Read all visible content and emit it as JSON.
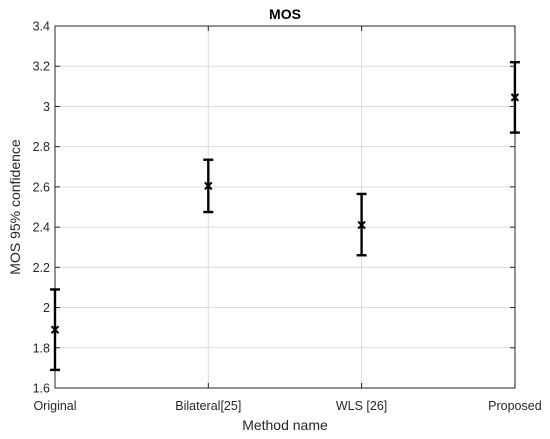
{
  "chart_data": {
    "type": "errorbar",
    "title": "MOS",
    "xlabel": "Method name",
    "ylabel": "MOS 95% confidence",
    "categories": [
      "Original",
      "Bilateral[25]",
      "WLS [26]",
      "Proposed"
    ],
    "series": [
      {
        "mean": [
          1.89,
          2.605,
          2.41,
          3.045
        ],
        "lower": [
          1.69,
          2.475,
          2.26,
          2.87
        ],
        "upper": [
          2.09,
          2.735,
          2.565,
          3.22
        ]
      }
    ],
    "ylim": [
      1.6,
      3.4
    ],
    "yticks": [
      1.6,
      1.8,
      2,
      2.2,
      2.4,
      2.6,
      2.8,
      3,
      3.2,
      3.4
    ],
    "ytick_labels": [
      "1.6",
      "1.8",
      "2",
      "2.2",
      "2.4",
      "2.6",
      "2.8",
      "3",
      "3.2",
      "3.4"
    ],
    "grid": true,
    "legend": false
  }
}
